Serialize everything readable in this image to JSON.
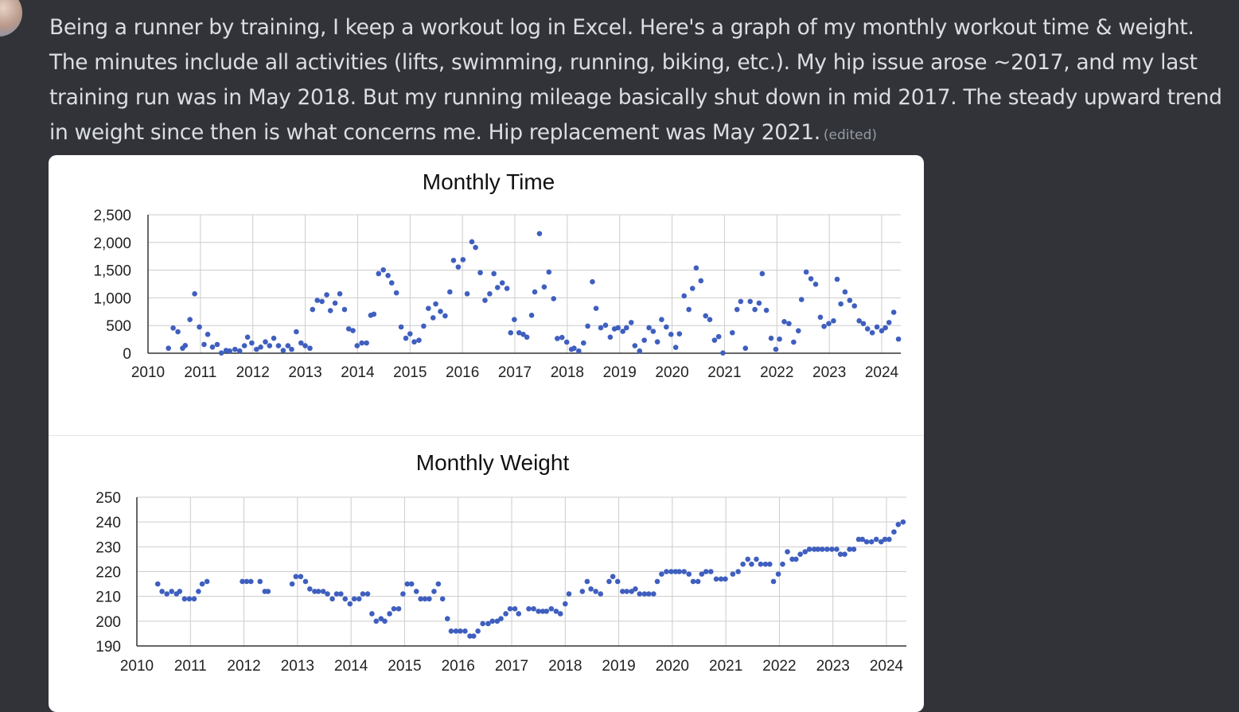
{
  "message": {
    "text": "Being a runner by training, I keep a workout log in Excel. Here's a graph of my monthly workout time & weight. The minutes include all activities (lifts, swimming, running, biking, etc.). My hip issue arose ~2017, and my last training run was in May 2018. But my running mileage basically shut down in mid 2017. The steady upward trend in weight since then is what concerns me. Hip replacement was May 2021.",
    "edited_label": "(edited)"
  },
  "colors": {
    "background": "#313338",
    "text": "#dbdee1",
    "marker": "#3f5fbf",
    "grid": "#cccccc"
  },
  "chart_data": [
    {
      "type": "scatter",
      "title": "Monthly Time",
      "xlim": [
        2010,
        2024.4
      ],
      "ylim": [
        0,
        2500
      ],
      "grid": true,
      "x_ticks": [
        "2010",
        "2011",
        "2012",
        "2013",
        "2014",
        "2015",
        "2016",
        "2017",
        "2018",
        "2019",
        "2020",
        "2021",
        "2022",
        "2023",
        "2024"
      ],
      "y_ticks": [
        "0",
        "500",
        "1,000",
        "1,500",
        "2,000",
        "2,500"
      ],
      "y_tick_values": [
        0,
        500,
        1000,
        1500,
        2000,
        2500
      ],
      "points": [
        [
          2010.39,
          90
        ],
        [
          2010.48,
          455
        ],
        [
          2010.57,
          388
        ],
        [
          2010.66,
          90
        ],
        [
          2010.71,
          139
        ],
        [
          2010.8,
          608
        ],
        [
          2010.89,
          1073
        ],
        [
          2010.98,
          474
        ],
        [
          2011.07,
          158
        ],
        [
          2011.14,
          340
        ],
        [
          2011.23,
          110
        ],
        [
          2011.32,
          158
        ],
        [
          2011.4,
          5
        ],
        [
          2011.49,
          50
        ],
        [
          2011.56,
          40
        ],
        [
          2011.66,
          70
        ],
        [
          2011.75,
          40
        ],
        [
          2011.84,
          135
        ],
        [
          2011.9,
          290
        ],
        [
          2011.98,
          185
        ],
        [
          2012.07,
          70
        ],
        [
          2012.15,
          110
        ],
        [
          2012.24,
          205
        ],
        [
          2012.32,
          135
        ],
        [
          2012.4,
          270
        ],
        [
          2012.49,
          135
        ],
        [
          2012.58,
          50
        ],
        [
          2012.67,
          135
        ],
        [
          2012.74,
          70
        ],
        [
          2012.83,
          388
        ],
        [
          2012.92,
          185
        ],
        [
          2013.0,
          135
        ],
        [
          2013.09,
          90
        ],
        [
          2013.14,
          790
        ],
        [
          2013.23,
          955
        ],
        [
          2013.32,
          935
        ],
        [
          2013.41,
          1055
        ],
        [
          2013.48,
          770
        ],
        [
          2013.57,
          905
        ],
        [
          2013.66,
          1073
        ],
        [
          2013.75,
          790
        ],
        [
          2013.83,
          440
        ],
        [
          2013.91,
          408
        ],
        [
          2013.99,
          135
        ],
        [
          2014.08,
          185
        ],
        [
          2014.17,
          185
        ],
        [
          2014.25,
          685
        ],
        [
          2014.31,
          705
        ],
        [
          2014.4,
          1437
        ],
        [
          2014.49,
          1505
        ],
        [
          2014.58,
          1404
        ],
        [
          2014.65,
          1270
        ],
        [
          2014.74,
          1090
        ],
        [
          2014.83,
          474
        ],
        [
          2014.92,
          270
        ],
        [
          2015.0,
          350
        ],
        [
          2015.08,
          205
        ],
        [
          2015.17,
          235
        ],
        [
          2015.26,
          490
        ],
        [
          2015.35,
          810
        ],
        [
          2015.44,
          640
        ],
        [
          2015.49,
          890
        ],
        [
          2015.58,
          755
        ],
        [
          2015.67,
          675
        ],
        [
          2015.76,
          1107
        ],
        [
          2015.83,
          1677
        ],
        [
          2015.92,
          1557
        ],
        [
          2016.01,
          1690
        ],
        [
          2016.09,
          1073
        ],
        [
          2016.18,
          2012
        ],
        [
          2016.25,
          1910
        ],
        [
          2016.34,
          1455
        ],
        [
          2016.43,
          955
        ],
        [
          2016.52,
          1073
        ],
        [
          2016.6,
          1437
        ],
        [
          2016.67,
          1187
        ],
        [
          2016.76,
          1270
        ],
        [
          2016.85,
          1170
        ],
        [
          2016.92,
          370
        ],
        [
          2016.99,
          608
        ],
        [
          2017.08,
          370
        ],
        [
          2017.16,
          340
        ],
        [
          2017.23,
          290
        ],
        [
          2017.32,
          685
        ],
        [
          2017.38,
          1107
        ],
        [
          2017.47,
          2160
        ],
        [
          2017.56,
          1197
        ],
        [
          2017.65,
          1466
        ],
        [
          2017.74,
          985
        ],
        [
          2017.81,
          266
        ],
        [
          2017.9,
          285
        ],
        [
          2017.99,
          200
        ],
        [
          2018.08,
          70
        ],
        [
          2018.13,
          90
        ],
        [
          2018.22,
          40
        ],
        [
          2018.31,
          185
        ],
        [
          2018.39,
          490
        ],
        [
          2018.48,
          1290
        ],
        [
          2018.55,
          810
        ],
        [
          2018.64,
          460
        ],
        [
          2018.73,
          505
        ],
        [
          2018.82,
          290
        ],
        [
          2018.9,
          440
        ],
        [
          2018.97,
          460
        ],
        [
          2019.06,
          395
        ],
        [
          2019.13,
          460
        ],
        [
          2019.22,
          555
        ],
        [
          2019.29,
          135
        ],
        [
          2019.38,
          40
        ],
        [
          2019.47,
          235
        ],
        [
          2019.56,
          460
        ],
        [
          2019.64,
          395
        ],
        [
          2019.72,
          205
        ],
        [
          2019.8,
          608
        ],
        [
          2019.89,
          474
        ],
        [
          2019.98,
          340
        ],
        [
          2020.07,
          105
        ],
        [
          2020.14,
          350
        ],
        [
          2020.23,
          1035
        ],
        [
          2020.32,
          790
        ],
        [
          2020.39,
          1170
        ],
        [
          2020.46,
          1540
        ],
        [
          2020.55,
          1308
        ],
        [
          2020.64,
          675
        ],
        [
          2020.72,
          608
        ],
        [
          2020.81,
          235
        ],
        [
          2020.89,
          300
        ],
        [
          2020.97,
          5
        ],
        [
          2021.15,
          370
        ],
        [
          2021.24,
          790
        ],
        [
          2021.31,
          935
        ],
        [
          2021.4,
          90
        ],
        [
          2021.49,
          935
        ],
        [
          2021.58,
          790
        ],
        [
          2021.66,
          905
        ],
        [
          2021.72,
          1437
        ],
        [
          2021.8,
          775
        ],
        [
          2021.89,
          270
        ],
        [
          2021.98,
          70
        ],
        [
          2022.05,
          255
        ],
        [
          2022.14,
          570
        ],
        [
          2022.23,
          535
        ],
        [
          2022.32,
          200
        ],
        [
          2022.41,
          405
        ],
        [
          2022.47,
          970
        ],
        [
          2022.56,
          1466
        ],
        [
          2022.65,
          1345
        ],
        [
          2022.74,
          1245
        ],
        [
          2022.83,
          650
        ],
        [
          2022.9,
          485
        ],
        [
          2022.99,
          535
        ],
        [
          2023.08,
          585
        ],
        [
          2023.15,
          1335
        ],
        [
          2023.22,
          890
        ],
        [
          2023.3,
          1107
        ],
        [
          2023.39,
          955
        ],
        [
          2023.48,
          855
        ],
        [
          2023.57,
          585
        ],
        [
          2023.65,
          535
        ],
        [
          2023.73,
          440
        ],
        [
          2023.82,
          370
        ],
        [
          2023.91,
          474
        ],
        [
          2024.0,
          405
        ],
        [
          2024.07,
          460
        ],
        [
          2024.14,
          555
        ],
        [
          2024.23,
          740
        ],
        [
          2024.32,
          255
        ]
      ]
    },
    {
      "type": "scatter",
      "title": "Monthly Weight",
      "xlim": [
        2010,
        2024.37
      ],
      "ylim": [
        190,
        250
      ],
      "grid": true,
      "x_ticks": [
        "2010",
        "2011",
        "2012",
        "2013",
        "2014",
        "2015",
        "2016",
        "2017",
        "2018",
        "2019",
        "2020",
        "2021",
        "2022",
        "2023",
        "2024"
      ],
      "y_ticks": [
        "190",
        "200",
        "210",
        "220",
        "230",
        "240",
        "250"
      ],
      "y_tick_values": [
        190,
        200,
        210,
        220,
        230,
        240,
        250
      ],
      "points": [
        [
          2010.39,
          215
        ],
        [
          2010.47,
          212
        ],
        [
          2010.56,
          211
        ],
        [
          2010.65,
          212
        ],
        [
          2010.74,
          211
        ],
        [
          2010.8,
          212
        ],
        [
          2010.89,
          209
        ],
        [
          2010.98,
          209
        ],
        [
          2011.07,
          209
        ],
        [
          2011.15,
          212
        ],
        [
          2011.22,
          215
        ],
        [
          2011.31,
          216
        ],
        [
          2011.97,
          216
        ],
        [
          2012.05,
          216
        ],
        [
          2012.13,
          216
        ],
        [
          2012.3,
          216
        ],
        [
          2012.39,
          212
        ],
        [
          2012.45,
          212
        ],
        [
          2012.9,
          215
        ],
        [
          2012.97,
          218
        ],
        [
          2013.06,
          218
        ],
        [
          2013.15,
          216
        ],
        [
          2013.23,
          213
        ],
        [
          2013.32,
          212
        ],
        [
          2013.39,
          212
        ],
        [
          2013.48,
          212
        ],
        [
          2013.56,
          211
        ],
        [
          2013.65,
          209
        ],
        [
          2013.73,
          211
        ],
        [
          2013.81,
          211
        ],
        [
          2013.89,
          209
        ],
        [
          2013.98,
          207
        ],
        [
          2014.06,
          209
        ],
        [
          2014.15,
          209
        ],
        [
          2014.22,
          211
        ],
        [
          2014.31,
          211
        ],
        [
          2014.39,
          203
        ],
        [
          2014.47,
          200
        ],
        [
          2014.56,
          201
        ],
        [
          2014.63,
          200
        ],
        [
          2014.72,
          203
        ],
        [
          2014.8,
          205
        ],
        [
          2014.89,
          205
        ],
        [
          2014.97,
          211
        ],
        [
          2015.05,
          215
        ],
        [
          2015.13,
          215
        ],
        [
          2015.22,
          212
        ],
        [
          2015.3,
          209
        ],
        [
          2015.38,
          209
        ],
        [
          2015.46,
          209
        ],
        [
          2015.55,
          212
        ],
        [
          2015.63,
          215
        ],
        [
          2015.71,
          209
        ],
        [
          2015.8,
          201
        ],
        [
          2015.87,
          196
        ],
        [
          2015.96,
          196
        ],
        [
          2016.04,
          196
        ],
        [
          2016.13,
          196
        ],
        [
          2016.22,
          194
        ],
        [
          2016.29,
          194
        ],
        [
          2016.37,
          196
        ],
        [
          2016.46,
          199
        ],
        [
          2016.56,
          199
        ],
        [
          2016.64,
          200
        ],
        [
          2016.73,
          200
        ],
        [
          2016.8,
          201
        ],
        [
          2016.89,
          203
        ],
        [
          2016.97,
          205
        ],
        [
          2017.06,
          205
        ],
        [
          2017.13,
          203
        ],
        [
          2017.32,
          205
        ],
        [
          2017.41,
          205
        ],
        [
          2017.5,
          204
        ],
        [
          2017.58,
          204
        ],
        [
          2017.65,
          204
        ],
        [
          2017.74,
          205
        ],
        [
          2017.83,
          204
        ],
        [
          2017.91,
          203
        ],
        [
          2018.0,
          207
        ],
        [
          2018.07,
          211
        ],
        [
          2018.32,
          212
        ],
        [
          2018.41,
          216
        ],
        [
          2018.48,
          213
        ],
        [
          2018.57,
          212
        ],
        [
          2018.66,
          211
        ],
        [
          2018.82,
          216
        ],
        [
          2018.89,
          218
        ],
        [
          2018.98,
          216
        ],
        [
          2019.07,
          212
        ],
        [
          2019.15,
          212
        ],
        [
          2019.24,
          212
        ],
        [
          2019.31,
          213
        ],
        [
          2019.39,
          211
        ],
        [
          2019.48,
          211
        ],
        [
          2019.56,
          211
        ],
        [
          2019.65,
          211
        ],
        [
          2019.72,
          216
        ],
        [
          2019.8,
          219
        ],
        [
          2019.89,
          220
        ],
        [
          2019.98,
          220
        ],
        [
          2020.06,
          220
        ],
        [
          2020.13,
          220
        ],
        [
          2020.22,
          220
        ],
        [
          2020.31,
          219
        ],
        [
          2020.39,
          216
        ],
        [
          2020.48,
          216
        ],
        [
          2020.55,
          219
        ],
        [
          2020.63,
          220
        ],
        [
          2020.72,
          220
        ],
        [
          2020.82,
          217
        ],
        [
          2020.91,
          217
        ],
        [
          2020.99,
          217
        ],
        [
          2021.13,
          219
        ],
        [
          2021.23,
          220
        ],
        [
          2021.32,
          223
        ],
        [
          2021.41,
          225
        ],
        [
          2021.48,
          223
        ],
        [
          2021.57,
          225
        ],
        [
          2021.65,
          223
        ],
        [
          2021.74,
          223
        ],
        [
          2021.82,
          223
        ],
        [
          2021.89,
          216
        ],
        [
          2021.98,
          219
        ],
        [
          2022.06,
          223
        ],
        [
          2022.15,
          228
        ],
        [
          2022.24,
          225
        ],
        [
          2022.31,
          225
        ],
        [
          2022.39,
          227
        ],
        [
          2022.48,
          228
        ],
        [
          2022.56,
          229
        ],
        [
          2022.65,
          229
        ],
        [
          2022.72,
          229
        ],
        [
          2022.8,
          229
        ],
        [
          2022.89,
          229
        ],
        [
          2022.98,
          229
        ],
        [
          2023.07,
          229
        ],
        [
          2023.14,
          227
        ],
        [
          2023.22,
          227
        ],
        [
          2023.31,
          229
        ],
        [
          2023.39,
          229
        ],
        [
          2023.48,
          233
        ],
        [
          2023.55,
          233
        ],
        [
          2023.63,
          232
        ],
        [
          2023.72,
          232
        ],
        [
          2023.81,
          233
        ],
        [
          2023.9,
          232
        ],
        [
          2023.97,
          233
        ],
        [
          2024.05,
          233
        ],
        [
          2024.14,
          236
        ],
        [
          2024.22,
          239
        ],
        [
          2024.31,
          240
        ]
      ]
    }
  ]
}
